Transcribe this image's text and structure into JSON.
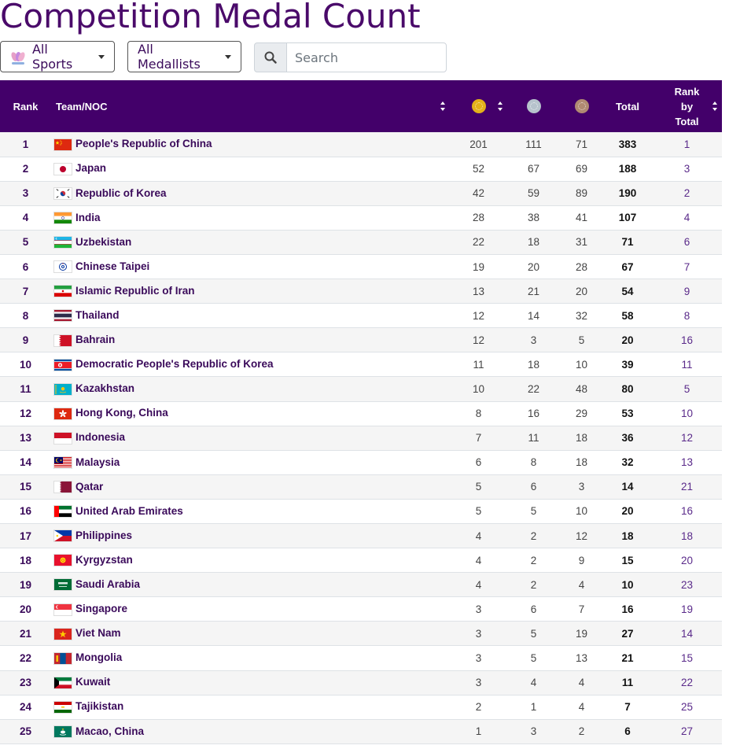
{
  "title": "Competition Medal Count",
  "controls": {
    "sports_label": "All Sports",
    "medallists_label": "All Medallists",
    "search_placeholder": "Search",
    "search_value": ""
  },
  "columns": {
    "rank": "Rank",
    "team": "Team/NOC",
    "gold_icon": "gold-medal-icon",
    "silver_icon": "silver-medal-icon",
    "bronze_icon": "bronze-medal-icon",
    "total": "Total",
    "rank_by_total": "Rank by Total"
  },
  "colors": {
    "header_bg": "#43006a",
    "gold": "#e3b21a",
    "silver": "#b6c2cc",
    "bronze": "#b08a72",
    "accent_text": "#3a0a5a"
  },
  "rows": [
    {
      "rank": "1",
      "team": "People's Republic of China",
      "flag": "china",
      "gold": "201",
      "silver": "111",
      "bronze": "71",
      "total": "383",
      "rank_by_total": "1"
    },
    {
      "rank": "2",
      "team": "Japan",
      "flag": "japan",
      "gold": "52",
      "silver": "67",
      "bronze": "69",
      "total": "188",
      "rank_by_total": "3"
    },
    {
      "rank": "3",
      "team": "Republic of Korea",
      "flag": "korea",
      "gold": "42",
      "silver": "59",
      "bronze": "89",
      "total": "190",
      "rank_by_total": "2"
    },
    {
      "rank": "4",
      "team": "India",
      "flag": "india",
      "gold": "28",
      "silver": "38",
      "bronze": "41",
      "total": "107",
      "rank_by_total": "4"
    },
    {
      "rank": "5",
      "team": "Uzbekistan",
      "flag": "uzbekistan",
      "gold": "22",
      "silver": "18",
      "bronze": "31",
      "total": "71",
      "rank_by_total": "6"
    },
    {
      "rank": "6",
      "team": "Chinese Taipei",
      "flag": "taipei",
      "gold": "19",
      "silver": "20",
      "bronze": "28",
      "total": "67",
      "rank_by_total": "7"
    },
    {
      "rank": "7",
      "team": "Islamic Republic of Iran",
      "flag": "iran",
      "gold": "13",
      "silver": "21",
      "bronze": "20",
      "total": "54",
      "rank_by_total": "9"
    },
    {
      "rank": "8",
      "team": "Thailand",
      "flag": "thailand",
      "gold": "12",
      "silver": "14",
      "bronze": "32",
      "total": "58",
      "rank_by_total": "8"
    },
    {
      "rank": "9",
      "team": "Bahrain",
      "flag": "bahrain",
      "gold": "12",
      "silver": "3",
      "bronze": "5",
      "total": "20",
      "rank_by_total": "16"
    },
    {
      "rank": "10",
      "team": "Democratic People's Republic of Korea",
      "flag": "dprk",
      "gold": "11",
      "silver": "18",
      "bronze": "10",
      "total": "39",
      "rank_by_total": "11"
    },
    {
      "rank": "11",
      "team": "Kazakhstan",
      "flag": "kazakhstan",
      "gold": "10",
      "silver": "22",
      "bronze": "48",
      "total": "80",
      "rank_by_total": "5"
    },
    {
      "rank": "12",
      "team": "Hong Kong, China",
      "flag": "hongkong",
      "gold": "8",
      "silver": "16",
      "bronze": "29",
      "total": "53",
      "rank_by_total": "10"
    },
    {
      "rank": "13",
      "team": "Indonesia",
      "flag": "indonesia",
      "gold": "7",
      "silver": "11",
      "bronze": "18",
      "total": "36",
      "rank_by_total": "12"
    },
    {
      "rank": "14",
      "team": "Malaysia",
      "flag": "malaysia",
      "gold": "6",
      "silver": "8",
      "bronze": "18",
      "total": "32",
      "rank_by_total": "13"
    },
    {
      "rank": "15",
      "team": "Qatar",
      "flag": "qatar",
      "gold": "5",
      "silver": "6",
      "bronze": "3",
      "total": "14",
      "rank_by_total": "21"
    },
    {
      "rank": "16",
      "team": "United Arab Emirates",
      "flag": "uae",
      "gold": "5",
      "silver": "5",
      "bronze": "10",
      "total": "20",
      "rank_by_total": "16"
    },
    {
      "rank": "17",
      "team": "Philippines",
      "flag": "philippines",
      "gold": "4",
      "silver": "2",
      "bronze": "12",
      "total": "18",
      "rank_by_total": "18"
    },
    {
      "rank": "18",
      "team": "Kyrgyzstan",
      "flag": "kyrgyzstan",
      "gold": "4",
      "silver": "2",
      "bronze": "9",
      "total": "15",
      "rank_by_total": "20"
    },
    {
      "rank": "19",
      "team": "Saudi Arabia",
      "flag": "saudi",
      "gold": "4",
      "silver": "2",
      "bronze": "4",
      "total": "10",
      "rank_by_total": "23"
    },
    {
      "rank": "20",
      "team": "Singapore",
      "flag": "singapore",
      "gold": "3",
      "silver": "6",
      "bronze": "7",
      "total": "16",
      "rank_by_total": "19"
    },
    {
      "rank": "21",
      "team": "Viet Nam",
      "flag": "vietnam",
      "gold": "3",
      "silver": "5",
      "bronze": "19",
      "total": "27",
      "rank_by_total": "14"
    },
    {
      "rank": "22",
      "team": "Mongolia",
      "flag": "mongolia",
      "gold": "3",
      "silver": "5",
      "bronze": "13",
      "total": "21",
      "rank_by_total": "15"
    },
    {
      "rank": "23",
      "team": "Kuwait",
      "flag": "kuwait",
      "gold": "3",
      "silver": "4",
      "bronze": "4",
      "total": "11",
      "rank_by_total": "22"
    },
    {
      "rank": "24",
      "team": "Tajikistan",
      "flag": "tajikistan",
      "gold": "2",
      "silver": "1",
      "bronze": "4",
      "total": "7",
      "rank_by_total": "25"
    },
    {
      "rank": "25",
      "team": "Macao, China",
      "flag": "macao",
      "gold": "1",
      "silver": "3",
      "bronze": "2",
      "total": "6",
      "rank_by_total": "27"
    }
  ]
}
